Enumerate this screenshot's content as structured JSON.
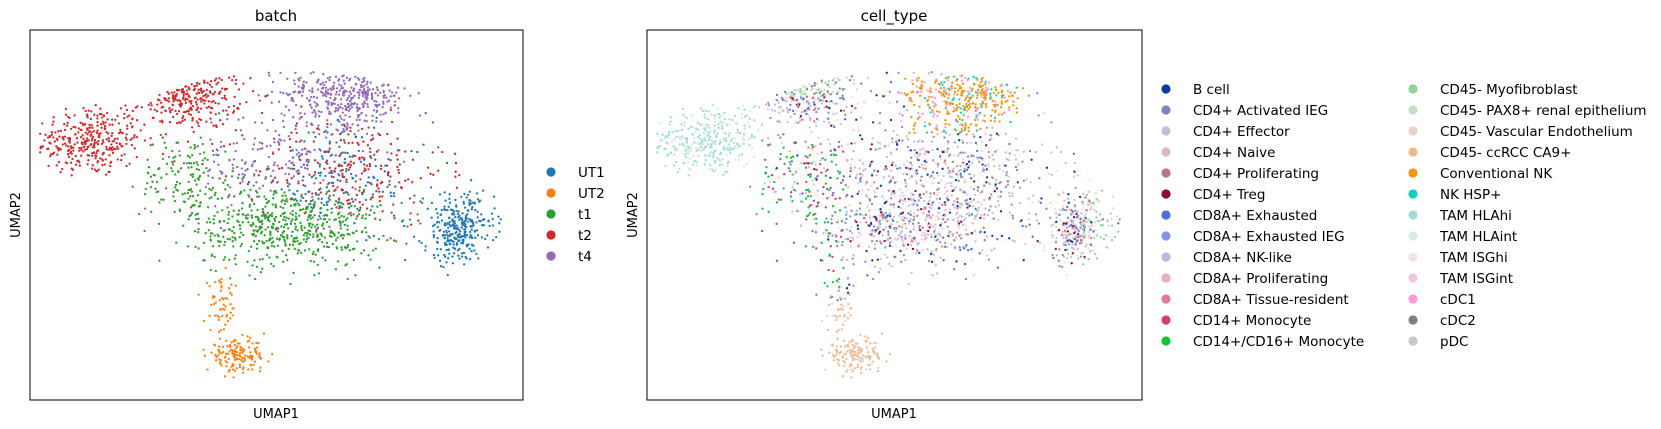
{
  "chart_data": [
    {
      "type": "scatter",
      "title": "batch",
      "xlabel": "UMAP1",
      "ylabel": "UMAP2",
      "xlim": [
        0,
        10
      ],
      "ylim": [
        0,
        10
      ],
      "grid": false,
      "legend_position": "right",
      "legend": [
        {
          "label": "UT1",
          "color": "#1f77b4"
        },
        {
          "label": "UT2",
          "color": "#ff7f0e"
        },
        {
          "label": "t1",
          "color": "#2ca02c"
        },
        {
          "label": "t2",
          "color": "#d62728"
        },
        {
          "label": "t4",
          "color": "#9467bd"
        }
      ],
      "clusters": [
        {
          "group": "t2",
          "cx": 1.2,
          "cy": 7.0,
          "sx": 0.9,
          "sy": 0.8,
          "n": 320
        },
        {
          "group": "t2",
          "cx": 3.2,
          "cy": 8.3,
          "sx": 0.9,
          "sy": 0.8,
          "n": 260
        },
        {
          "group": "t2",
          "cx": 6.5,
          "cy": 6.2,
          "sx": 1.6,
          "sy": 1.2,
          "n": 230
        },
        {
          "group": "t4",
          "cx": 6.4,
          "cy": 8.3,
          "sx": 1.1,
          "sy": 0.8,
          "n": 360
        },
        {
          "group": "t4",
          "cx": 5.0,
          "cy": 6.5,
          "sx": 1.5,
          "sy": 1.2,
          "n": 170
        },
        {
          "group": "t1",
          "cx": 5.2,
          "cy": 4.7,
          "sx": 1.6,
          "sy": 0.9,
          "n": 560
        },
        {
          "group": "t1",
          "cx": 3.2,
          "cy": 6.0,
          "sx": 0.8,
          "sy": 1.0,
          "n": 140
        },
        {
          "group": "UT1",
          "cx": 8.7,
          "cy": 4.6,
          "sx": 0.6,
          "sy": 0.8,
          "n": 300
        },
        {
          "group": "UT1",
          "cx": 6.3,
          "cy": 6.0,
          "sx": 1.5,
          "sy": 1.3,
          "n": 180
        },
        {
          "group": "UT2",
          "cx": 4.2,
          "cy": 1.2,
          "sx": 0.5,
          "sy": 0.35,
          "n": 150
        },
        {
          "group": "UT2",
          "cx": 3.9,
          "cy": 2.5,
          "sx": 0.3,
          "sy": 0.6,
          "n": 55
        }
      ]
    },
    {
      "type": "scatter",
      "title": "cell_type",
      "xlabel": "UMAP1",
      "ylabel": "UMAP2",
      "xlim": [
        0,
        10
      ],
      "ylim": [
        0,
        10
      ],
      "grid": false,
      "legend_position": "right",
      "legend": [
        {
          "label": "B cell",
          "color": "#023fa5"
        },
        {
          "label": "CD4+ Activated IEG",
          "color": "#7d87b9"
        },
        {
          "label": "CD4+ Effector",
          "color": "#bec1d4"
        },
        {
          "label": "CD4+ Naive",
          "color": "#d6bcc0"
        },
        {
          "label": "CD4+ Proliferating",
          "color": "#bb7784"
        },
        {
          "label": "CD4+ Treg",
          "color": "#8e063b"
        },
        {
          "label": "CD8A+ Exhausted",
          "color": "#4a6fe3"
        },
        {
          "label": "CD8A+ Exhausted IEG",
          "color": "#8595e1"
        },
        {
          "label": "CD8A+ NK-like",
          "color": "#b5bbe3"
        },
        {
          "label": "CD8A+ Proliferating",
          "color": "#e6afb9"
        },
        {
          "label": "CD8A+ Tissue-resident",
          "color": "#e07b91"
        },
        {
          "label": "CD14+ Monocyte",
          "color": "#d33f6a"
        },
        {
          "label": "CD14+/CD16+ Monocyte",
          "color": "#11c638"
        },
        {
          "label": "CD45- Myofibroblast",
          "color": "#8dd593"
        },
        {
          "label": "CD45- PAX8+ renal epithelium",
          "color": "#c6dec7"
        },
        {
          "label": "CD45- Vascular Endothelium",
          "color": "#ead3c6"
        },
        {
          "label": "CD45- ccRCC CA9+",
          "color": "#f0b98d"
        },
        {
          "label": "Conventional NK",
          "color": "#ef9708"
        },
        {
          "label": "NK HSP+",
          "color": "#0fcfc0"
        },
        {
          "label": "TAM HLAhi",
          "color": "#9cded6"
        },
        {
          "label": "TAM HLAint",
          "color": "#d5eae7"
        },
        {
          "label": "TAM ISGhi",
          "color": "#f3e1eb"
        },
        {
          "label": "TAM ISGint",
          "color": "#f6c4e1"
        },
        {
          "label": "cDC1",
          "color": "#f79cd4"
        },
        {
          "label": "cDC2",
          "color": "#7f7f7f"
        },
        {
          "label": "pDC",
          "color": "#c7c7c7"
        }
      ]
    }
  ]
}
